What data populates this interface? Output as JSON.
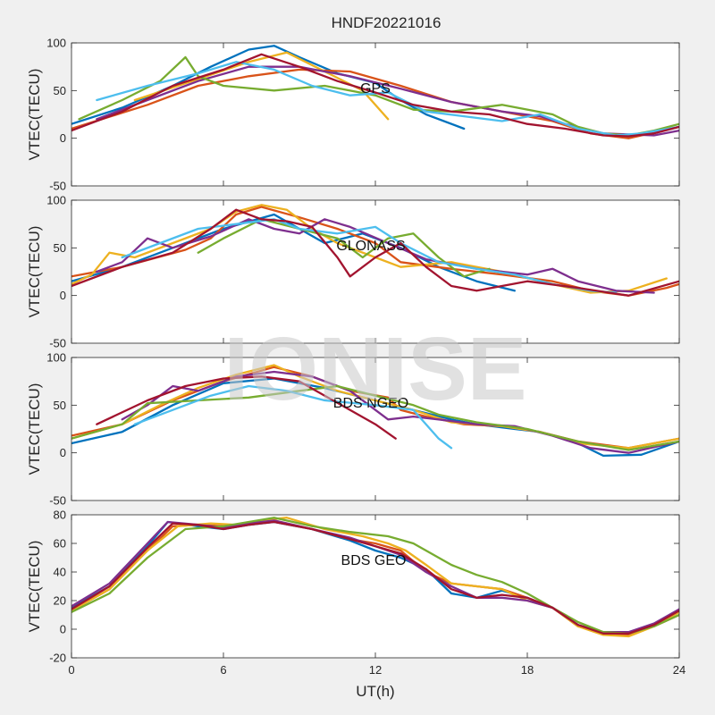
{
  "figure": {
    "title": "HNDF20221016",
    "xlabel": "UT(h)",
    "watermark": "IONISE",
    "background": "#f0f0f0"
  },
  "series_colors": [
    "#0072bd",
    "#d95319",
    "#edb120",
    "#7e2f8e",
    "#77ac30",
    "#4dbeee",
    "#a2142f"
  ],
  "chart_data": [
    {
      "type": "line",
      "label": "GPS",
      "ylabel": "VTEC(TECU)",
      "xlim": [
        0,
        24
      ],
      "ylim": [
        -50,
        100
      ],
      "xticks": [
        0,
        6,
        12,
        18,
        24
      ],
      "yticks": [
        -50,
        0,
        50,
        100
      ],
      "series": [
        {
          "color_index": 0,
          "x": [
            0,
            2,
            4,
            5.5,
            7,
            8,
            9,
            10.5,
            12,
            13,
            14,
            15.5
          ],
          "y": [
            15,
            32,
            55,
            75,
            93,
            97,
            85,
            68,
            58,
            40,
            25,
            10
          ]
        },
        {
          "color_index": 1,
          "x": [
            0,
            3,
            5,
            7,
            9,
            11,
            13,
            15,
            17,
            19,
            20.5,
            22,
            24
          ],
          "y": [
            10,
            35,
            55,
            65,
            72,
            70,
            55,
            38,
            28,
            18,
            5,
            0,
            12
          ]
        },
        {
          "color_index": 2,
          "x": [
            2.5,
            5,
            7,
            8.5,
            10,
            11.5,
            12.5
          ],
          "y": [
            40,
            62,
            80,
            90,
            70,
            50,
            20
          ]
        },
        {
          "color_index": 3,
          "x": [
            1,
            3,
            5,
            7,
            9,
            11,
            13,
            15,
            17,
            18.5,
            19.5,
            21,
            23,
            24
          ],
          "y": [
            20,
            40,
            60,
            75,
            75,
            65,
            52,
            38,
            28,
            23,
            15,
            5,
            3,
            8
          ]
        },
        {
          "color_index": 4,
          "x": [
            0.3,
            2,
            3.5,
            4.5,
            5,
            6,
            8,
            10,
            12,
            13.5,
            15,
            17,
            19,
            20,
            21,
            22,
            23,
            24
          ],
          "y": [
            20,
            40,
            60,
            85,
            65,
            55,
            50,
            55,
            45,
            30,
            28,
            35,
            25,
            12,
            5,
            3,
            8,
            15
          ]
        },
        {
          "color_index": 5,
          "x": [
            1,
            3,
            5,
            6.5,
            8,
            9.5,
            11,
            12.5,
            14,
            15.5,
            17,
            18.5,
            20,
            21.5,
            22.5,
            24
          ],
          "y": [
            40,
            55,
            68,
            80,
            72,
            55,
            45,
            48,
            28,
            23,
            18,
            25,
            10,
            3,
            5,
            12
          ]
        },
        {
          "color_index": 6,
          "x": [
            0,
            2,
            4,
            6,
            7.5,
            9,
            10.5,
            12,
            13.5,
            15,
            16.5,
            18,
            19.5,
            21,
            22,
            23,
            24
          ],
          "y": [
            8,
            28,
            55,
            72,
            88,
            75,
            60,
            48,
            35,
            28,
            25,
            15,
            10,
            3,
            2,
            5,
            12
          ]
        }
      ]
    },
    {
      "type": "line",
      "label": "GLONASS",
      "ylabel": "VTEC(TECU)",
      "xlim": [
        0,
        24
      ],
      "ylim": [
        -50,
        100
      ],
      "xticks": [
        0,
        6,
        12,
        18,
        24
      ],
      "yticks": [
        -50,
        0,
        50,
        100
      ],
      "series": [
        {
          "color_index": 0,
          "x": [
            0,
            2,
            4,
            6,
            8,
            9,
            10,
            11.5,
            13,
            14.5,
            16,
            17.5
          ],
          "y": [
            15,
            30,
            50,
            70,
            85,
            70,
            55,
            65,
            50,
            30,
            15,
            5
          ]
        },
        {
          "color_index": 1,
          "x": [
            0,
            2,
            4.5,
            5.5,
            6.5,
            7.5,
            9,
            10.5,
            12,
            13,
            15,
            17,
            19,
            20.5,
            22,
            23.5,
            24
          ],
          "y": [
            20,
            30,
            48,
            60,
            85,
            93,
            82,
            70,
            55,
            35,
            28,
            22,
            15,
            5,
            0,
            8,
            12
          ]
        },
        {
          "color_index": 2,
          "x": [
            0,
            0.8,
            1.5,
            2.5,
            4,
            5.5,
            6.5,
            7.5,
            8.5,
            9.5,
            10.5,
            12,
            13,
            15,
            17,
            19,
            20.5,
            22,
            23.5
          ],
          "y": [
            12,
            22,
            45,
            40,
            55,
            70,
            88,
            95,
            90,
            70,
            55,
            40,
            30,
            35,
            25,
            12,
            3,
            5,
            18
          ]
        },
        {
          "color_index": 3,
          "x": [
            1,
            2,
            3,
            4,
            5.5,
            7,
            8,
            9,
            10,
            11,
            12.5,
            14,
            16,
            18,
            19,
            20,
            21.5,
            23
          ],
          "y": [
            25,
            35,
            60,
            50,
            62,
            80,
            70,
            65,
            80,
            72,
            55,
            38,
            28,
            22,
            28,
            15,
            5,
            3
          ]
        },
        {
          "color_index": 4,
          "x": [
            5,
            6,
            7.5,
            9,
            10.5,
            11.5,
            12.5,
            13.5,
            14.5,
            15.5,
            16.5
          ],
          "y": [
            45,
            60,
            80,
            70,
            60,
            40,
            60,
            65,
            40,
            20,
            28
          ]
        },
        {
          "color_index": 5,
          "x": [
            2,
            3.5,
            5,
            6.5,
            8,
            9,
            10.5,
            12,
            13,
            14.5,
            16,
            17.5,
            19,
            20.5,
            21.5
          ],
          "y": [
            40,
            55,
            70,
            75,
            80,
            70,
            65,
            72,
            55,
            35,
            28,
            22,
            12,
            5,
            3
          ]
        },
        {
          "color_index": 6,
          "x": [
            0,
            2,
            4,
            5.5,
            6.5,
            7.5,
            8.5,
            9.5,
            10.5,
            11,
            12,
            13,
            14,
            15,
            16,
            18,
            20,
            22,
            24
          ],
          "y": [
            10,
            30,
            45,
            70,
            90,
            80,
            78,
            72,
            40,
            20,
            40,
            55,
            30,
            10,
            5,
            15,
            8,
            0,
            15
          ]
        }
      ]
    },
    {
      "type": "line",
      "label": "BDS NGEO",
      "ylabel": "VTEC(TECU)",
      "xlim": [
        0,
        24
      ],
      "ylim": [
        -50,
        100
      ],
      "xticks": [
        0,
        6,
        12,
        18,
        24
      ],
      "yticks": [
        -50,
        0,
        50,
        100
      ],
      "series": [
        {
          "color_index": 0,
          "x": [
            0,
            2,
            4,
            6,
            8,
            10,
            12,
            13.5,
            15,
            16,
            17.5,
            18.5,
            20,
            21,
            22.5,
            24
          ],
          "y": [
            10,
            22,
            50,
            73,
            78,
            68,
            55,
            45,
            35,
            30,
            25,
            22,
            10,
            -3,
            -2,
            12
          ]
        },
        {
          "color_index": 1,
          "x": [
            0,
            2,
            4,
            6,
            8,
            9.5,
            11,
            12.5,
            13,
            14,
            15.5,
            17,
            18.5,
            20,
            22,
            24
          ],
          "y": [
            18,
            30,
            55,
            75,
            90,
            80,
            65,
            58,
            45,
            38,
            30,
            28,
            22,
            12,
            5,
            15
          ]
        },
        {
          "color_index": 2,
          "x": [
            0,
            2,
            3.5,
            5,
            6.5,
            8,
            9,
            10.5,
            12,
            13.5,
            15,
            17,
            18.5,
            20,
            22,
            24
          ],
          "y": [
            15,
            30,
            50,
            68,
            82,
            92,
            80,
            65,
            55,
            45,
            32,
            28,
            22,
            10,
            5,
            15
          ]
        },
        {
          "color_index": 3,
          "x": [
            2,
            3,
            4,
            5,
            6.5,
            8,
            9.5,
            11,
            12,
            12.5,
            13.5,
            14.5,
            16,
            17.5,
            19,
            20.5,
            22,
            24
          ],
          "y": [
            35,
            50,
            70,
            65,
            80,
            85,
            80,
            65,
            45,
            35,
            38,
            35,
            30,
            28,
            18,
            5,
            0,
            12
          ]
        },
        {
          "color_index": 4,
          "x": [
            0,
            2,
            3,
            5,
            7,
            9,
            10.5,
            12,
            13.5,
            14.5,
            16,
            18,
            20,
            22,
            24
          ],
          "y": [
            15,
            30,
            52,
            55,
            58,
            65,
            70,
            60,
            50,
            40,
            32,
            25,
            12,
            3,
            12
          ]
        },
        {
          "color_index": 5,
          "x": [
            2.5,
            4,
            5.5,
            7,
            8.5,
            10,
            12,
            13.5,
            14.5,
            15
          ],
          "y": [
            30,
            45,
            60,
            70,
            65,
            55,
            50,
            45,
            15,
            5
          ]
        },
        {
          "color_index": 6,
          "x": [
            1,
            3,
            4.5,
            6,
            7.5,
            9,
            10,
            11,
            12,
            12.8
          ],
          "y": [
            30,
            55,
            70,
            78,
            80,
            75,
            60,
            45,
            30,
            15
          ]
        }
      ]
    },
    {
      "type": "line",
      "label": "BDS GEO",
      "ylabel": "VTEC(TECU)",
      "xlim": [
        0,
        24
      ],
      "ylim": [
        -20,
        80
      ],
      "xticks": [
        0,
        6,
        12,
        18,
        24
      ],
      "yticks": [
        -20,
        0,
        20,
        40,
        60,
        80
      ],
      "series": [
        {
          "color_index": 0,
          "x": [
            0,
            1.5,
            3,
            3.8,
            5,
            6,
            7,
            8,
            9.5,
            11,
            12,
            13,
            14,
            15,
            16,
            17,
            18,
            19,
            20,
            21,
            22,
            23,
            24
          ],
          "y": [
            15,
            30,
            58,
            75,
            72,
            70,
            73,
            75,
            70,
            62,
            55,
            50,
            42,
            25,
            22,
            27,
            22,
            15,
            3,
            -3,
            -3,
            3,
            12
          ]
        },
        {
          "color_index": 1,
          "x": [
            0,
            1.5,
            3,
            4,
            5,
            6,
            7,
            8,
            9.5,
            11,
            12,
            13,
            14,
            15,
            16,
            17,
            18,
            19,
            20,
            21,
            22,
            23,
            24
          ],
          "y": [
            13,
            28,
            55,
            72,
            73,
            72,
            74,
            76,
            70,
            63,
            60,
            55,
            40,
            32,
            30,
            28,
            22,
            15,
            2,
            -3,
            -4,
            2,
            10
          ]
        },
        {
          "color_index": 2,
          "x": [
            0,
            1.5,
            3,
            4.2,
            5.5,
            6.5,
            7.5,
            8.5,
            10,
            11.5,
            12.5,
            13.2,
            14,
            15,
            16,
            17,
            18,
            19,
            20,
            21,
            22,
            23,
            24
          ],
          "y": [
            13,
            28,
            55,
            72,
            74,
            73,
            76,
            78,
            70,
            65,
            60,
            55,
            45,
            32,
            30,
            28,
            20,
            15,
            2,
            -4,
            -5,
            2,
            12
          ]
        },
        {
          "color_index": 3,
          "x": [
            0,
            1.5,
            3,
            3.8,
            5,
            6,
            7,
            8,
            9.5,
            11,
            12,
            13,
            14,
            15,
            16,
            17,
            18,
            19,
            20,
            21,
            22,
            23,
            24
          ],
          "y": [
            16,
            32,
            60,
            75,
            73,
            71,
            74,
            76,
            70,
            64,
            58,
            52,
            40,
            30,
            22,
            22,
            20,
            15,
            3,
            -2,
            -2,
            4,
            14
          ]
        },
        {
          "color_index": 4,
          "x": [
            0,
            1.5,
            3,
            4.5,
            6,
            7,
            8,
            9.5,
            11,
            12.5,
            13.5,
            15,
            16,
            17,
            18,
            19,
            20,
            21,
            22,
            23,
            24
          ],
          "y": [
            12,
            25,
            50,
            70,
            72,
            75,
            78,
            72,
            68,
            65,
            60,
            45,
            38,
            33,
            25,
            15,
            5,
            -2,
            -3,
            2,
            10
          ]
        },
        {
          "color_index": 6,
          "x": [
            0,
            1.5,
            3,
            4,
            5,
            6,
            7,
            8,
            9.5,
            11,
            12,
            13,
            14,
            15,
            16,
            17,
            18,
            19,
            20,
            21,
            22,
            23,
            24
          ],
          "y": [
            14,
            30,
            57,
            74,
            73,
            70,
            73,
            75,
            70,
            63,
            58,
            53,
            42,
            28,
            22,
            24,
            22,
            15,
            3,
            -3,
            -3,
            3,
            13
          ]
        }
      ]
    }
  ]
}
